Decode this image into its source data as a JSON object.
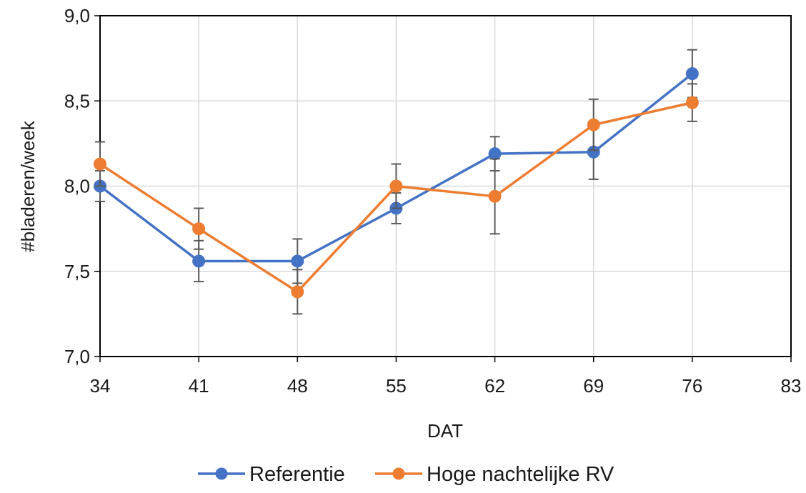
{
  "chart_data": {
    "type": "line",
    "title": "",
    "xlabel": "DAT",
    "ylabel": "#bladeren/week",
    "xlim": [
      34,
      83
    ],
    "ylim": [
      7.0,
      9.0
    ],
    "x_ticks": [
      34,
      41,
      48,
      55,
      62,
      69,
      76,
      83
    ],
    "x_tick_labels": [
      "34",
      "41",
      "48",
      "55",
      "62",
      "69",
      "76",
      "83"
    ],
    "y_ticks": [
      7.0,
      7.5,
      8.0,
      8.5,
      9.0
    ],
    "y_tick_labels": [
      "7,0",
      "7,5",
      "8,0",
      "8,5",
      "9,0"
    ],
    "grid": true,
    "legend_position": "bottom",
    "x": [
      34,
      41,
      48,
      55,
      62,
      69,
      76
    ],
    "series": [
      {
        "name": "Referentie",
        "color": "#4472C4",
        "values": [
          8.0,
          7.56,
          7.56,
          7.87,
          8.19,
          8.2,
          8.66
        ],
        "errors": [
          0.09,
          0.12,
          0.13,
          0.09,
          0.1,
          0.16,
          0.14
        ]
      },
      {
        "name": "Hoge nachtelijke RV",
        "color": "#ED7D31",
        "values": [
          8.13,
          7.75,
          7.38,
          8.0,
          7.94,
          8.36,
          8.49
        ],
        "errors": [
          0.13,
          0.12,
          0.13,
          0.13,
          0.22,
          0.15,
          0.11
        ]
      }
    ]
  }
}
